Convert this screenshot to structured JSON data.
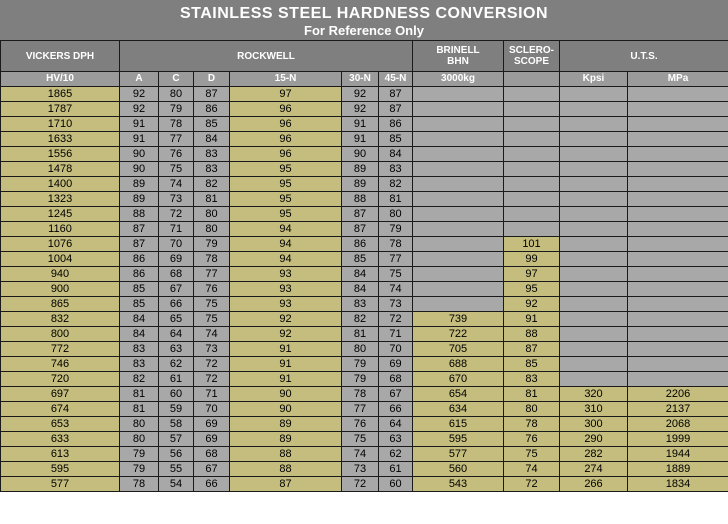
{
  "title": "STAINLESS STEEL HARDNESS CONVERSION",
  "subtitle": "For Reference Only",
  "group_headers": {
    "vickers": "VICKERS DPH",
    "rockwell": "ROCKWELL",
    "brinell": "BRINELL BHN",
    "sclero": "SCLERO-SCOPE",
    "uts": "U.T.S."
  },
  "sub_headers": [
    "HV/10",
    "A",
    "C",
    "D",
    "15-N",
    "30-N",
    "45-N",
    "3000kg",
    "",
    "Kpsi",
    "MPa"
  ],
  "colors": {
    "header_bg": "#7f7f7f",
    "olive": "#c4bd7d",
    "grey_cell": "#a8a8a8"
  },
  "rows": [
    [
      "1865",
      "92",
      "80",
      "87",
      "97",
      "92",
      "87",
      "",
      "",
      "",
      ""
    ],
    [
      "1787",
      "92",
      "79",
      "86",
      "96",
      "92",
      "87",
      "",
      "",
      "",
      ""
    ],
    [
      "1710",
      "91",
      "78",
      "85",
      "96",
      "91",
      "86",
      "",
      "",
      "",
      ""
    ],
    [
      "1633",
      "91",
      "77",
      "84",
      "96",
      "91",
      "85",
      "",
      "",
      "",
      ""
    ],
    [
      "1556",
      "90",
      "76",
      "83",
      "96",
      "90",
      "84",
      "",
      "",
      "",
      ""
    ],
    [
      "1478",
      "90",
      "75",
      "83",
      "95",
      "89",
      "83",
      "",
      "",
      "",
      ""
    ],
    [
      "1400",
      "89",
      "74",
      "82",
      "95",
      "89",
      "82",
      "",
      "",
      "",
      ""
    ],
    [
      "1323",
      "89",
      "73",
      "81",
      "95",
      "88",
      "81",
      "",
      "",
      "",
      ""
    ],
    [
      "1245",
      "88",
      "72",
      "80",
      "95",
      "87",
      "80",
      "",
      "",
      "",
      ""
    ],
    [
      "1160",
      "87",
      "71",
      "80",
      "94",
      "87",
      "79",
      "",
      "",
      "",
      ""
    ],
    [
      "1076",
      "87",
      "70",
      "79",
      "94",
      "86",
      "78",
      "",
      "101",
      "",
      ""
    ],
    [
      "1004",
      "86",
      "69",
      "78",
      "94",
      "85",
      "77",
      "",
      "99",
      "",
      ""
    ],
    [
      "940",
      "86",
      "68",
      "77",
      "93",
      "84",
      "75",
      "",
      "97",
      "",
      ""
    ],
    [
      "900",
      "85",
      "67",
      "76",
      "93",
      "84",
      "74",
      "",
      "95",
      "",
      ""
    ],
    [
      "865",
      "85",
      "66",
      "75",
      "93",
      "83",
      "73",
      "",
      "92",
      "",
      ""
    ],
    [
      "832",
      "84",
      "65",
      "75",
      "92",
      "82",
      "72",
      "739",
      "91",
      "",
      ""
    ],
    [
      "800",
      "84",
      "64",
      "74",
      "92",
      "81",
      "71",
      "722",
      "88",
      "",
      ""
    ],
    [
      "772",
      "83",
      "63",
      "73",
      "91",
      "80",
      "70",
      "705",
      "87",
      "",
      ""
    ],
    [
      "746",
      "83",
      "62",
      "72",
      "91",
      "79",
      "69",
      "688",
      "85",
      "",
      ""
    ],
    [
      "720",
      "82",
      "61",
      "72",
      "91",
      "79",
      "68",
      "670",
      "83",
      "",
      ""
    ],
    [
      "697",
      "81",
      "60",
      "71",
      "90",
      "78",
      "67",
      "654",
      "81",
      "320",
      "2206"
    ],
    [
      "674",
      "81",
      "59",
      "70",
      "90",
      "77",
      "66",
      "634",
      "80",
      "310",
      "2137"
    ],
    [
      "653",
      "80",
      "58",
      "69",
      "89",
      "76",
      "64",
      "615",
      "78",
      "300",
      "2068"
    ],
    [
      "633",
      "80",
      "57",
      "69",
      "89",
      "75",
      "63",
      "595",
      "76",
      "290",
      "1999"
    ],
    [
      "613",
      "79",
      "56",
      "68",
      "88",
      "74",
      "62",
      "577",
      "75",
      "282",
      "1944"
    ],
    [
      "595",
      "79",
      "55",
      "67",
      "88",
      "73",
      "61",
      "560",
      "74",
      "274",
      "1889"
    ],
    [
      "577",
      "78",
      "54",
      "66",
      "87",
      "72",
      "60",
      "543",
      "72",
      "266",
      "1834"
    ]
  ]
}
